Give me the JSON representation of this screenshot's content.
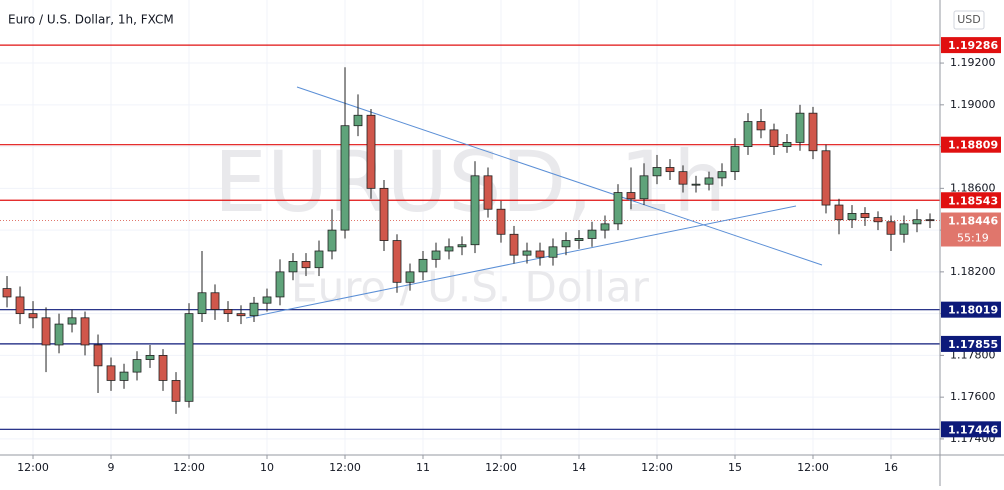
{
  "chart_data": {
    "type": "candlestick",
    "title": "Euro / U.S. Dollar, 1h, FXCM",
    "watermark": "EURUSD, 1h",
    "watermark_subtitle": "Euro / U.S. Dollar",
    "currency": "USD",
    "up_color": "#5fa37a",
    "down_color": "#d0574b",
    "x": [
      0,
      2,
      4,
      6,
      8,
      10,
      12,
      14,
      16,
      18,
      20,
      22,
      24,
      26,
      28,
      30,
      32,
      34,
      36,
      38,
      40,
      42,
      44,
      46,
      48,
      50,
      52,
      54,
      56,
      58,
      60,
      62,
      64,
      66,
      68,
      70,
      72,
      74,
      76,
      78,
      80,
      82,
      84,
      86,
      88,
      90,
      92,
      94,
      96,
      98,
      100,
      102,
      104,
      106,
      108,
      110,
      112,
      114,
      116,
      118,
      120,
      122,
      124,
      126,
      128,
      130,
      132,
      134,
      136,
      138,
      140,
      142
    ],
    "open": [
      1.1812,
      1.1808,
      1.18,
      1.1798,
      1.1785,
      1.1795,
      1.1798,
      1.1785,
      1.1775,
      1.1768,
      1.1772,
      1.1778,
      1.178,
      1.1768,
      1.1758,
      1.18,
      1.181,
      1.1802,
      1.18,
      1.1799,
      1.1805,
      1.1808,
      1.182,
      1.1825,
      1.1822,
      1.183,
      1.184,
      1.189,
      1.1895,
      1.186,
      1.1835,
      1.1815,
      1.182,
      1.1826,
      1.183,
      1.1832,
      1.1833,
      1.1866,
      1.185,
      1.1838,
      1.1828,
      1.183,
      1.1827,
      1.1832,
      1.1835,
      1.1836,
      1.184,
      1.1843,
      1.1858,
      1.1855,
      1.1866,
      1.187,
      1.1868,
      1.1862,
      1.1862,
      1.1865,
      1.1868,
      1.188,
      1.1892,
      1.1888,
      1.188,
      1.1882,
      1.1896,
      1.1878,
      1.1852,
      1.1845,
      1.1848,
      1.1846,
      1.1844,
      1.1838,
      1.1843,
      1.1845
    ],
    "high": [
      1.1818,
      1.1813,
      1.1806,
      1.1803,
      1.18,
      1.1802,
      1.1801,
      1.179,
      1.1779,
      1.1776,
      1.1782,
      1.1785,
      1.1783,
      1.1772,
      1.1805,
      1.183,
      1.1814,
      1.1806,
      1.1804,
      1.1808,
      1.1812,
      1.1826,
      1.1829,
      1.1829,
      1.1835,
      1.185,
      1.1918,
      1.1905,
      1.1898,
      1.1864,
      1.1838,
      1.1824,
      1.183,
      1.1834,
      1.1836,
      1.1837,
      1.1873,
      1.187,
      1.1854,
      1.1842,
      1.1834,
      1.1834,
      1.1836,
      1.1839,
      1.184,
      1.1844,
      1.1847,
      1.1862,
      1.187,
      1.1872,
      1.1876,
      1.1874,
      1.1871,
      1.1866,
      1.1868,
      1.1872,
      1.1884,
      1.1896,
      1.1898,
      1.1891,
      1.1886,
      1.19,
      1.1899,
      1.1881,
      1.1855,
      1.1852,
      1.1851,
      1.1849,
      1.1847,
      1.1847,
      1.185,
      1.1848
    ],
    "low": [
      1.1803,
      1.1795,
      1.1793,
      1.1772,
      1.1781,
      1.1791,
      1.178,
      1.1762,
      1.1763,
      1.1764,
      1.1768,
      1.1774,
      1.1763,
      1.1752,
      1.1755,
      1.1796,
      1.1797,
      1.1796,
      1.1795,
      1.1796,
      1.1801,
      1.1804,
      1.1816,
      1.1818,
      1.1818,
      1.1826,
      1.1836,
      1.1885,
      1.1855,
      1.183,
      1.181,
      1.1811,
      1.1816,
      1.1822,
      1.1826,
      1.1828,
      1.1829,
      1.1846,
      1.1834,
      1.1824,
      1.1824,
      1.1823,
      1.1823,
      1.1828,
      1.1831,
      1.1832,
      1.1836,
      1.184,
      1.185,
      1.1852,
      1.1862,
      1.1864,
      1.1858,
      1.1858,
      1.1859,
      1.1861,
      1.1864,
      1.1876,
      1.1884,
      1.1876,
      1.1877,
      1.1878,
      1.1874,
      1.1848,
      1.1838,
      1.1841,
      1.1842,
      1.184,
      1.183,
      1.1834,
      1.1839,
      1.1841
    ],
    "close": [
      1.1808,
      1.18,
      1.1798,
      1.1785,
      1.1795,
      1.1798,
      1.1785,
      1.1775,
      1.1768,
      1.1772,
      1.1778,
      1.178,
      1.1768,
      1.1758,
      1.18,
      1.181,
      1.1802,
      1.18,
      1.1799,
      1.1805,
      1.1808,
      1.182,
      1.1825,
      1.1822,
      1.183,
      1.184,
      1.189,
      1.1895,
      1.186,
      1.1835,
      1.1815,
      1.182,
      1.1826,
      1.183,
      1.1832,
      1.1833,
      1.1866,
      1.185,
      1.1838,
      1.1828,
      1.183,
      1.1827,
      1.1832,
      1.1835,
      1.1836,
      1.184,
      1.1843,
      1.1858,
      1.1855,
      1.1866,
      1.187,
      1.1868,
      1.1862,
      1.1862,
      1.1865,
      1.1868,
      1.188,
      1.1892,
      1.1888,
      1.188,
      1.1882,
      1.1896,
      1.1878,
      1.1852,
      1.1845,
      1.1848,
      1.1846,
      1.1844,
      1.1838,
      1.1843,
      1.1845,
      1.18446
    ],
    "xlim": [
      -1.08,
      143.54
    ],
    "ylim": [
      1.17323,
      1.19502
    ],
    "xticks": [
      {
        "value": 4,
        "label": "12:00"
      },
      {
        "value": 16,
        "label": "9"
      },
      {
        "value": 28,
        "label": "12:00"
      },
      {
        "value": 40,
        "label": "10"
      },
      {
        "value": 52,
        "label": "12:00"
      },
      {
        "value": 64,
        "label": "11"
      },
      {
        "value": 76,
        "label": "12:00"
      },
      {
        "value": 88,
        "label": "14"
      },
      {
        "value": 100,
        "label": "12:00"
      },
      {
        "value": 112,
        "label": "15"
      },
      {
        "value": 124,
        "label": "12:00"
      },
      {
        "value": 136,
        "label": "16"
      }
    ],
    "yticks": [
      {
        "value": 1.174,
        "label": "1.17400"
      },
      {
        "value": 1.176,
        "label": "1.17600"
      },
      {
        "value": 1.178,
        "label": "1.17800"
      },
      {
        "value": 1.18,
        "label": "1.18000"
      },
      {
        "value": 1.182,
        "label": "1.18200"
      },
      {
        "value": 1.184,
        "label": "1.18400"
      },
      {
        "value": 1.186,
        "label": "1.18600"
      },
      {
        "value": 1.188,
        "label": "1.18800"
      },
      {
        "value": 1.19,
        "label": "1.19000"
      },
      {
        "value": 1.192,
        "label": "1.19200"
      }
    ],
    "grid": true,
    "levels": [
      {
        "value": 1.19286,
        "color": "#e01010"
      },
      {
        "value": 1.18809,
        "color": "#e01010"
      },
      {
        "value": 1.18543,
        "color": "#e01010"
      },
      {
        "value": 1.18019,
        "color": "#0d1a7a"
      },
      {
        "value": 1.17855,
        "color": "#0d1a7a"
      },
      {
        "value": 1.17446,
        "color": "#0d1a7a"
      }
    ],
    "last": {
      "value": 1.18446,
      "countdown": "55:19",
      "color": "#e0766c"
    }
  }
}
